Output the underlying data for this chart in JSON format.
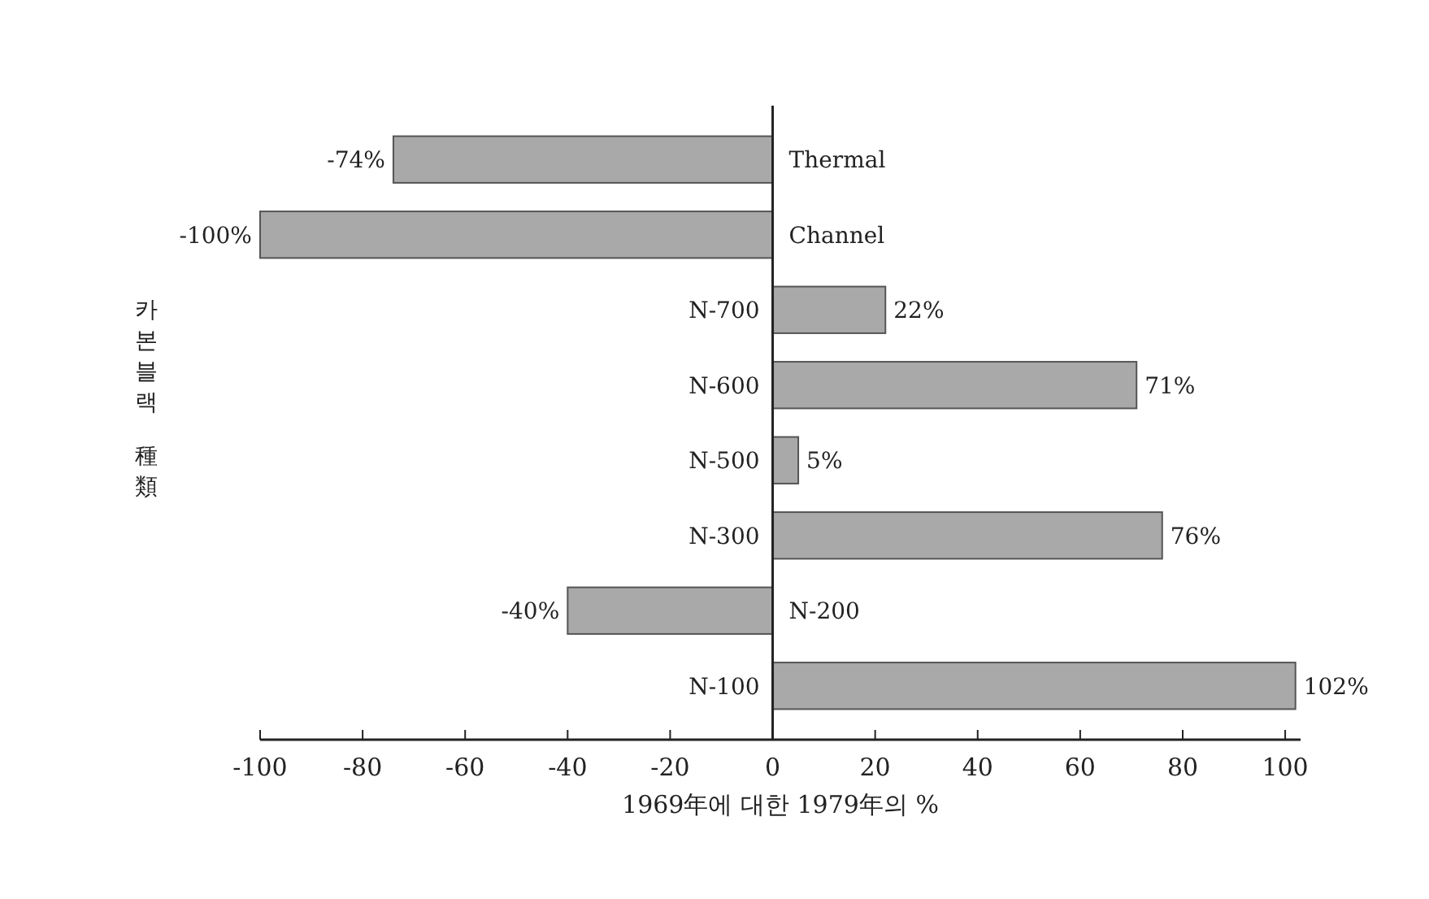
{
  "chart_data": {
    "type": "bar",
    "orientation": "horizontal",
    "categories": [
      "Thermal",
      "Channel",
      "N-700",
      "N-600",
      "N-500",
      "N-300",
      "N-200",
      "N-100"
    ],
    "values": [
      -74,
      -100,
      22,
      71,
      5,
      76,
      -40,
      102
    ],
    "value_labels": [
      "-74%",
      "-100%",
      "22%",
      "71%",
      "5%",
      "76%",
      "-40%",
      "102%"
    ],
    "color": "#a9a9a9",
    "xlim": [
      -100,
      103
    ],
    "xticks": [
      -100,
      -80,
      -60,
      -40,
      -20,
      0,
      20,
      40,
      60,
      80,
      100
    ],
    "xlabel": "1969年에 대한 1979年의 %",
    "ylabel": "카본블랙 種類"
  }
}
